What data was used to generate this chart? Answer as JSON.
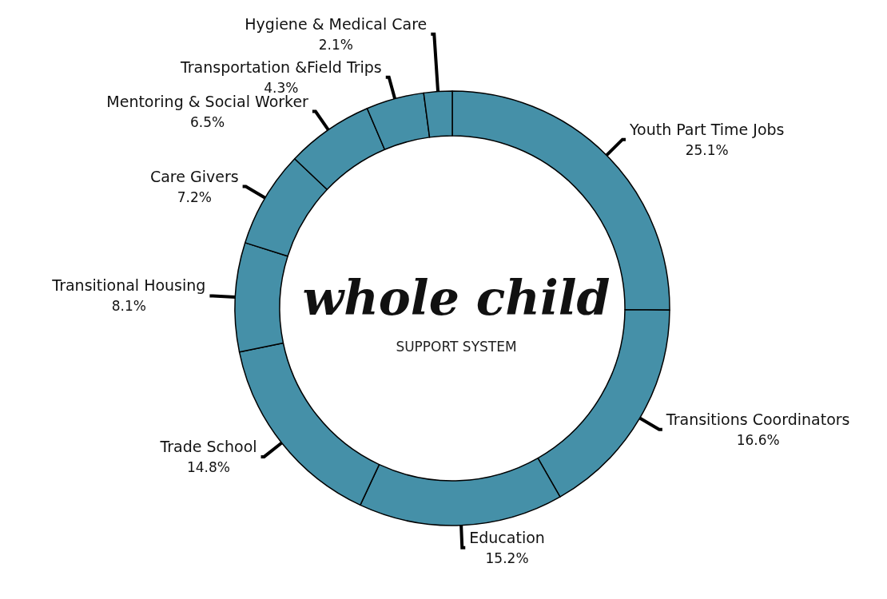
{
  "chart_data": {
    "type": "donut",
    "title": "whole child",
    "subtitle": "SUPPORT SYSTEM",
    "categories": [
      "Youth Part Time Jobs",
      "Transitions Coordinators",
      "Education",
      "Trade School",
      "Transitional Housing",
      "Care Givers",
      "Mentoring & Social Worker",
      "Transportation &Field Trips",
      "Hygiene & Medical Care"
    ],
    "values": [
      25.1,
      16.6,
      15.2,
      14.8,
      8.1,
      7.2,
      6.5,
      4.3,
      2.1
    ],
    "value_labels": [
      "25.1%",
      "16.6%",
      "15.2%",
      "14.8%",
      "8.1%",
      "7.2%",
      "6.5%",
      "4.3%",
      "2.1%"
    ],
    "colors": [
      "#4590a8",
      "#4590a8",
      "#4590a8",
      "#4590a8",
      "#4590a8",
      "#4590a8",
      "#4590a8",
      "#4590a8",
      "#4590a8"
    ],
    "legend": false
  }
}
